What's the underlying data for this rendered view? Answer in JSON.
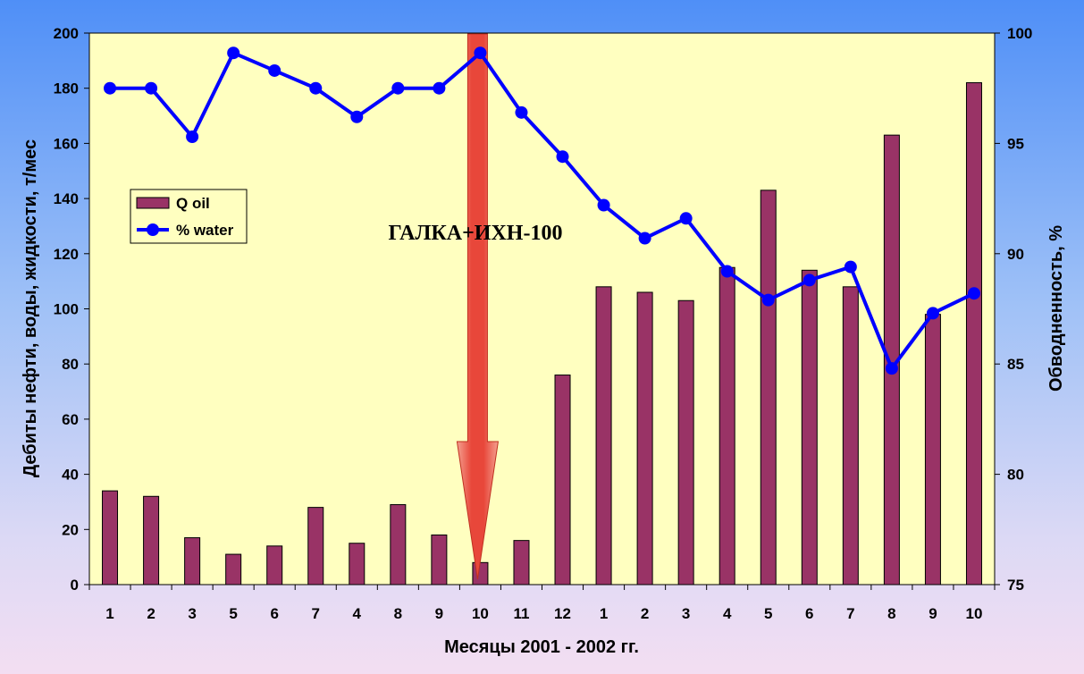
{
  "chart_data": {
    "type": "bar",
    "categories": [
      "1",
      "2",
      "3",
      "5",
      "6",
      "7",
      "4",
      "8",
      "9",
      "10",
      "11",
      "12",
      "1",
      "2",
      "3",
      "4",
      "5",
      "6",
      "7",
      "8",
      "9",
      "10"
    ],
    "series": [
      {
        "name": "Q oil",
        "type": "bar",
        "axis": "left",
        "color": "#993366",
        "values": [
          34,
          32,
          17,
          11,
          14,
          28,
          15,
          29,
          18,
          8,
          16,
          76,
          108,
          106,
          103,
          115,
          143,
          114,
          108,
          163,
          98,
          182
        ]
      },
      {
        "name": "% water",
        "type": "line",
        "axis": "right",
        "color": "#0000ff",
        "values": [
          97.5,
          97.5,
          95.3,
          99.1,
          98.3,
          97.5,
          96.2,
          97.5,
          97.5,
          99.1,
          96.4,
          94.4,
          92.2,
          90.7,
          91.6,
          89.2,
          87.9,
          88.8,
          89.4,
          84.8,
          87.3,
          88.2
        ]
      }
    ],
    "xlabel": "Месяцы 2001 - 2002 гг.",
    "ylabel": "Дебиты нефти, воды, жидкости, т/мес",
    "y2label": "Обводненность, %",
    "ylim": [
      0,
      200
    ],
    "y2lim": [
      75,
      100
    ],
    "yticks": [
      "0",
      "20",
      "40",
      "60",
      "80",
      "100",
      "120",
      "140",
      "160",
      "180",
      "200"
    ],
    "y2ticks": [
      "75",
      "80",
      "85",
      "90",
      "95",
      "100"
    ],
    "legend_position": "upper-left",
    "annotation": {
      "text": "ГАЛКА+ИХН-100",
      "arrow_at_category_index": 9,
      "arrow_color": "#e8473a"
    },
    "plot_background": "#ffffc0"
  }
}
